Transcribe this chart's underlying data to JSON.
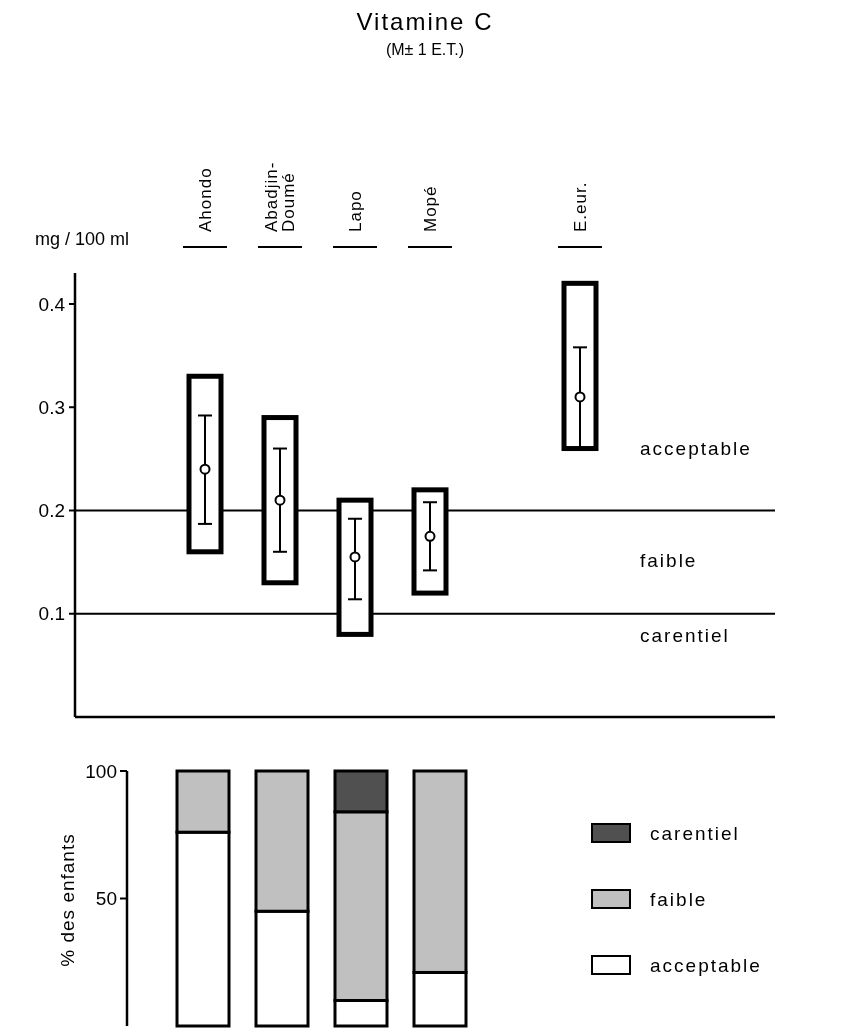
{
  "chart_data": [
    {
      "type": "bar",
      "title": "Vitamine C",
      "subtitle": "(M± 1 E.T.)",
      "ylabel": "mg / 100 ml",
      "categories": [
        "Ahondo",
        "Abadjin-Doumé",
        "Lapo",
        "Mopé",
        null,
        "E.eur."
      ],
      "series": [
        {
          "color": "#ffffff",
          "base": [
            0.16,
            0.13,
            0.08,
            0.12,
            null,
            0.26
          ],
          "values": [
            0.17,
            0.16,
            0.13,
            0.1,
            null,
            0.16
          ]
        },
        {
          "type": "scatter",
          "color": "#000000",
          "marker": "circle",
          "values": [
            0.24,
            0.21,
            0.155,
            0.175,
            null,
            0.31
          ],
          "errors": [
            [
              0.187,
              0.292
            ],
            [
              0.16,
              0.26
            ],
            [
              0.114,
              0.192
            ],
            [
              0.142,
              0.208
            ],
            null,
            [
              0.26,
              0.358
            ]
          ]
        }
      ],
      "ylim": [
        0,
        0.43
      ],
      "yticks": [
        {
          "value": 0.1,
          "label": "0.1"
        },
        {
          "value": 0.2,
          "label": "0.2"
        },
        {
          "value": 0.3,
          "label": "0.3"
        },
        {
          "value": 0.4,
          "label": "0.4"
        }
      ],
      "ref_lines": [
        {
          "axis": "y",
          "value": 0.2
        },
        {
          "axis": "y",
          "value": 0.1
        }
      ],
      "annotations": [
        "acceptable",
        "faible",
        "carentiel"
      ]
    },
    {
      "type": "bar",
      "stacked": true,
      "ylabel": "% des enfants",
      "categories": [
        null,
        null,
        null,
        null
      ],
      "series": [
        {
          "name": "acceptable",
          "color": "#ffffff",
          "values": [
            76,
            45,
            10,
            21
          ]
        },
        {
          "name": "faible",
          "color": "#c0c0c0",
          "values": [
            24,
            55,
            74,
            79
          ]
        },
        {
          "name": "carentiel",
          "color": "#505050",
          "values": [
            0,
            0,
            16,
            0
          ]
        }
      ],
      "ylim": [
        0,
        100
      ],
      "yticks": [
        50,
        100
      ],
      "legend": "right"
    }
  ]
}
